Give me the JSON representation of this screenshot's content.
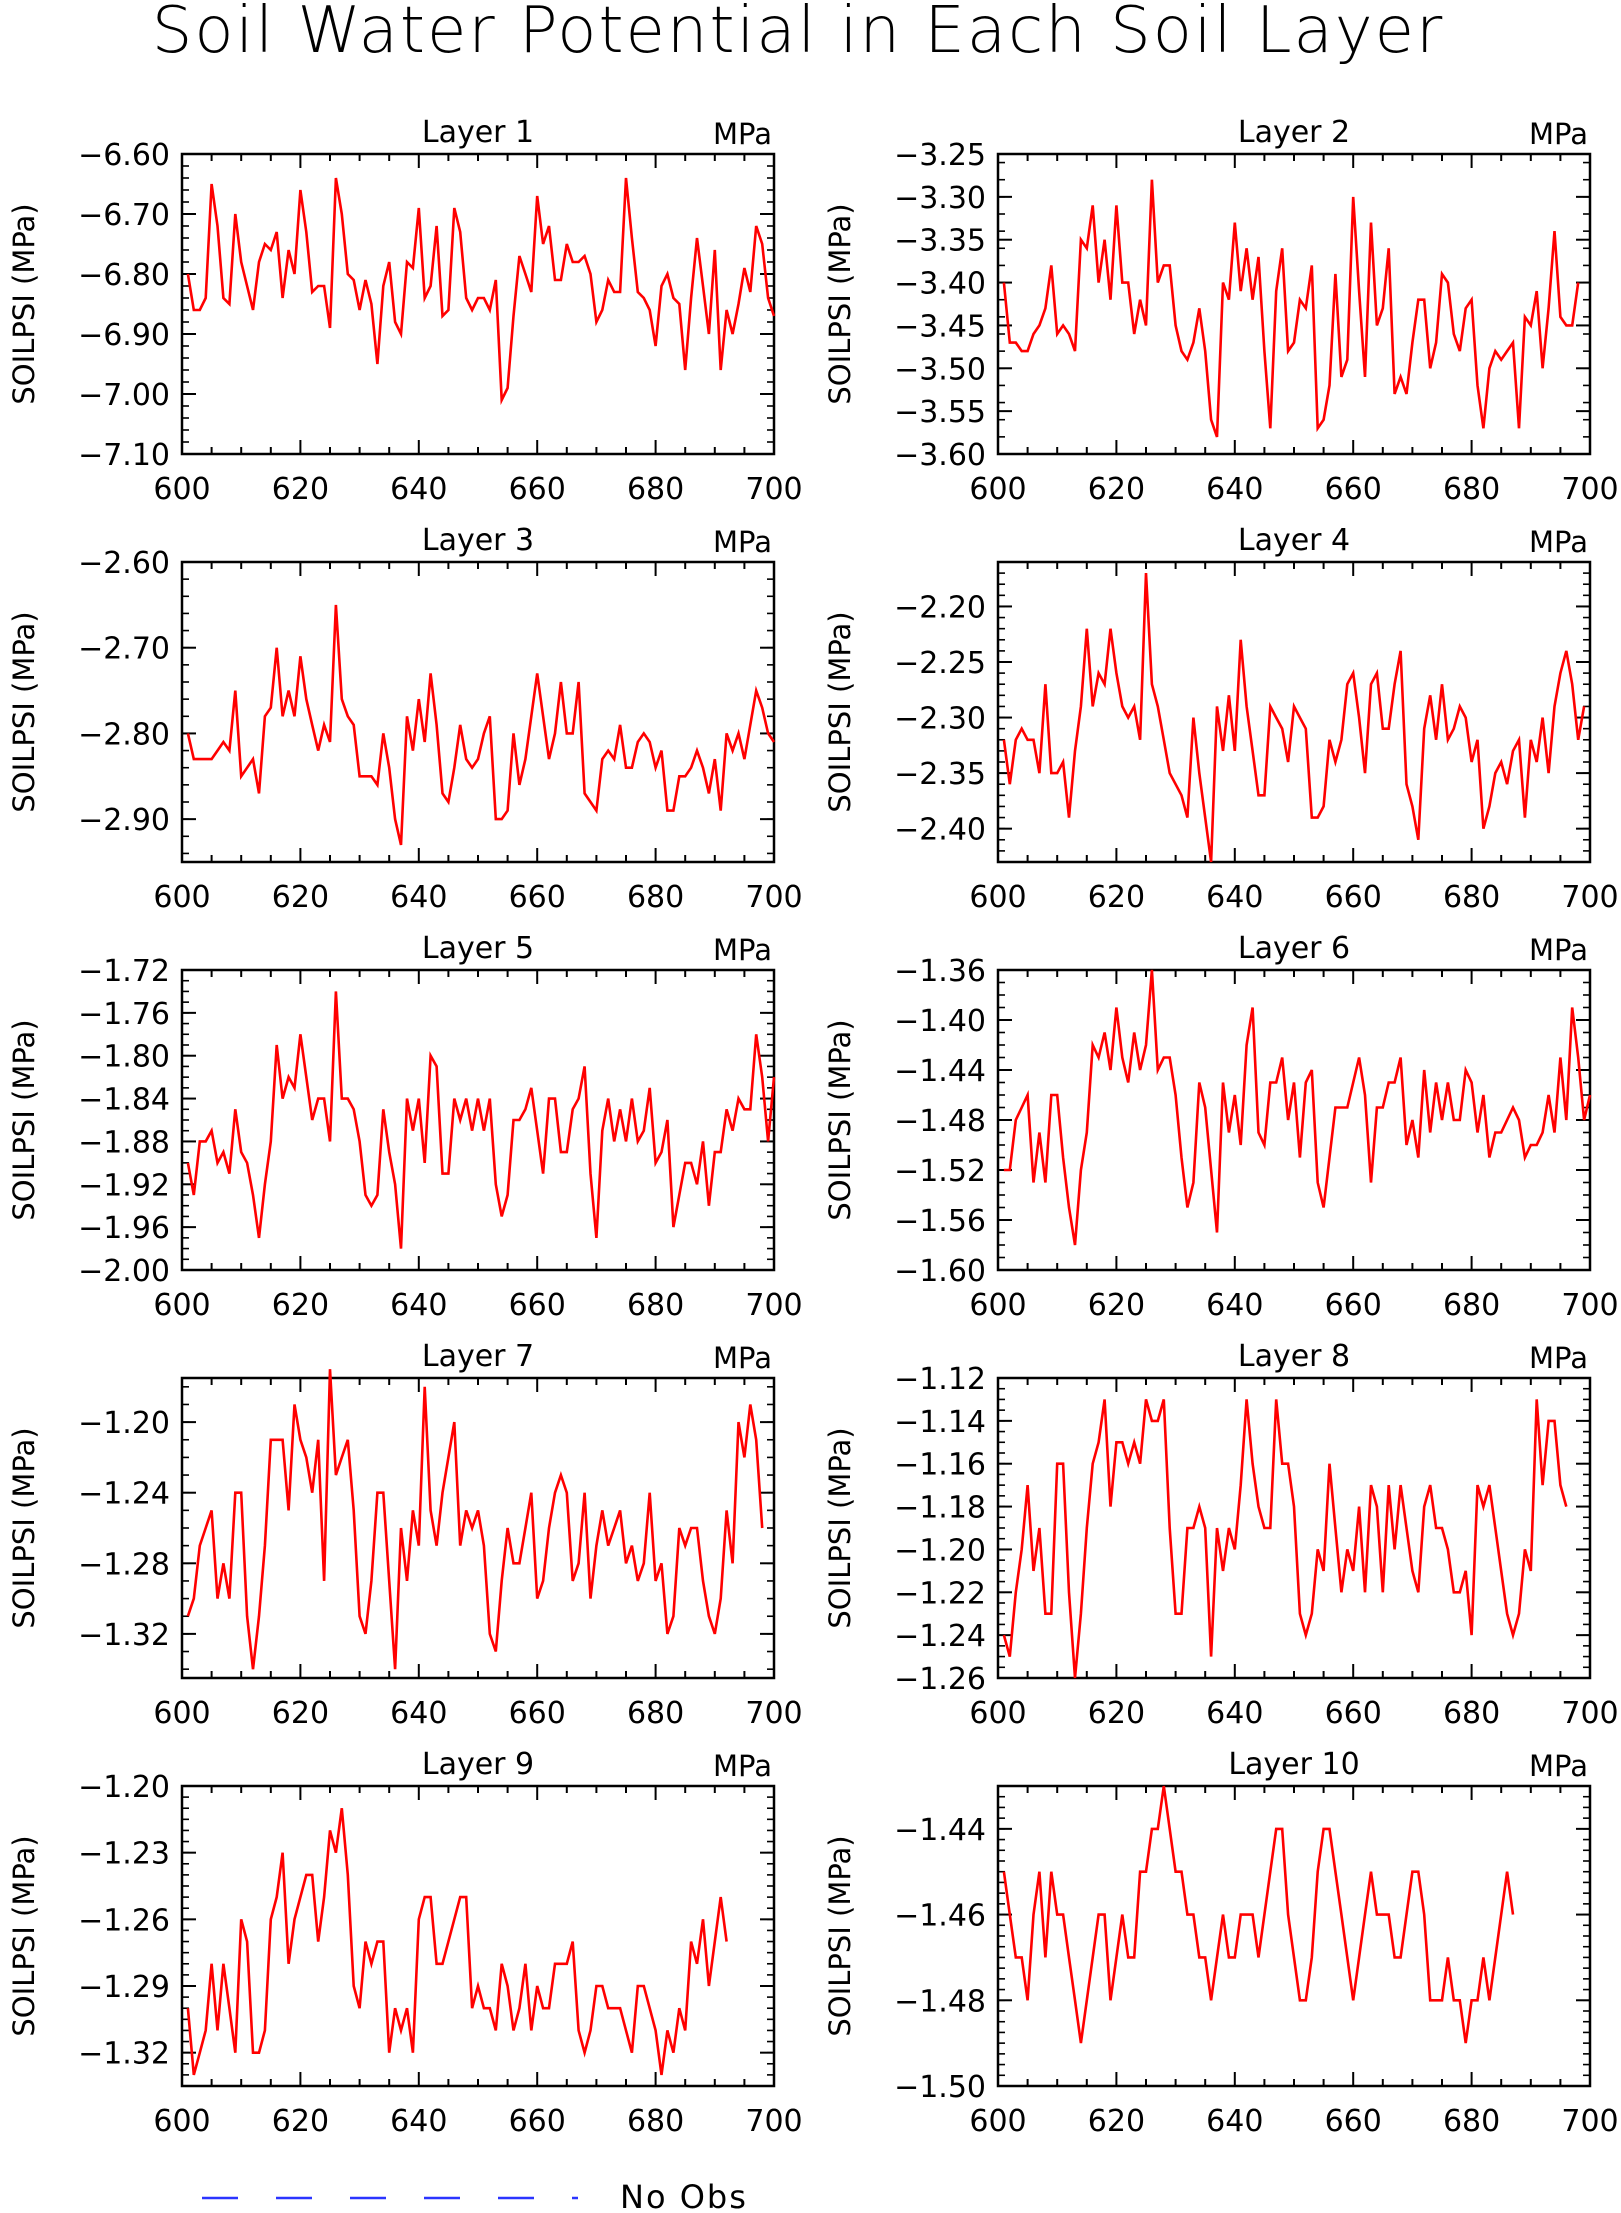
{
  "title": "Soil Water Potential in Each Soil Layer",
  "legend": {
    "label": "No Obs",
    "color": "#2b35ff"
  },
  "line_color": "#ff0000",
  "chart_data": [
    {
      "type": "line",
      "title": "Layer 1",
      "unit": "MPa",
      "ylabel": "SOILPSI (MPa)",
      "xlim": [
        600,
        700
      ],
      "ylim": [
        -7.1,
        -6.6
      ],
      "xticks": [
        "600",
        "620",
        "640",
        "660",
        "680",
        "700"
      ],
      "yticks": [
        "-6.60",
        "-6.70",
        "-6.80",
        "-6.90",
        "-7.00",
        "-7.10"
      ],
      "x_start": 601,
      "values": [
        -6.8,
        -6.86,
        -6.86,
        -6.84,
        -6.65,
        -6.72,
        -6.84,
        -6.85,
        -6.7,
        -6.78,
        -6.82,
        -6.86,
        -6.78,
        -6.75,
        -6.76,
        -6.73,
        -6.84,
        -6.76,
        -6.8,
        -6.66,
        -6.73,
        -6.83,
        -6.82,
        -6.82,
        -6.89,
        -6.64,
        -6.7,
        -6.8,
        -6.81,
        -6.86,
        -6.81,
        -6.85,
        -6.95,
        -6.82,
        -6.78,
        -6.88,
        -6.9,
        -6.78,
        -6.79,
        -6.69,
        -6.84,
        -6.82,
        -6.72,
        -6.87,
        -6.86,
        -6.69,
        -6.73,
        -6.84,
        -6.86,
        -6.84,
        -6.84,
        -6.86,
        -6.81,
        -7.01,
        -6.99,
        -6.87,
        -6.77,
        -6.8,
        -6.83,
        -6.67,
        -6.75,
        -6.72,
        -6.81,
        -6.81,
        -6.75,
        -6.78,
        -6.78,
        -6.77,
        -6.8,
        -6.88,
        -6.86,
        -6.81,
        -6.83,
        -6.83,
        -6.64,
        -6.74,
        -6.83,
        -6.84,
        -6.86,
        -6.92,
        -6.82,
        -6.8,
        -6.84,
        -6.85,
        -6.96,
        -6.84,
        -6.74,
        -6.82,
        -6.9,
        -6.76,
        -6.96,
        -6.86,
        -6.9,
        -6.85,
        -6.79,
        -6.83,
        -6.72,
        -6.75,
        -6.84,
        -6.87
      ]
    },
    {
      "type": "line",
      "title": "Layer 2",
      "unit": "MPa",
      "ylabel": "SOILPSI (MPa)",
      "xlim": [
        600,
        700
      ],
      "ylim": [
        -3.6,
        -3.25
      ],
      "xticks": [
        "600",
        "620",
        "640",
        "660",
        "680",
        "700"
      ],
      "yticks": [
        "-3.25",
        "-3.30",
        "-3.35",
        "-3.40",
        "-3.45",
        "-3.50",
        "-3.55",
        "-3.60"
      ],
      "x_start": 601,
      "values": [
        -3.4,
        -3.47,
        -3.47,
        -3.48,
        -3.48,
        -3.46,
        -3.45,
        -3.43,
        -3.38,
        -3.46,
        -3.45,
        -3.46,
        -3.48,
        -3.35,
        -3.36,
        -3.31,
        -3.4,
        -3.35,
        -3.42,
        -3.31,
        -3.4,
        -3.4,
        -3.46,
        -3.42,
        -3.45,
        -3.28,
        -3.4,
        -3.38,
        -3.38,
        -3.45,
        -3.48,
        -3.49,
        -3.47,
        -3.43,
        -3.48,
        -3.56,
        -3.58,
        -3.4,
        -3.42,
        -3.33,
        -3.41,
        -3.36,
        -3.42,
        -3.37,
        -3.48,
        -3.57,
        -3.41,
        -3.36,
        -3.48,
        -3.47,
        -3.42,
        -3.43,
        -3.38,
        -3.57,
        -3.56,
        -3.52,
        -3.39,
        -3.51,
        -3.49,
        -3.3,
        -3.41,
        -3.51,
        -3.33,
        -3.45,
        -3.43,
        -3.36,
        -3.53,
        -3.51,
        -3.53,
        -3.47,
        -3.42,
        -3.42,
        -3.5,
        -3.47,
        -3.39,
        -3.4,
        -3.46,
        -3.48,
        -3.43,
        -3.42,
        -3.52,
        -3.57,
        -3.5,
        -3.48,
        -3.49,
        -3.48,
        -3.47,
        -3.57,
        -3.44,
        -3.45,
        -3.41,
        -3.5,
        -3.43,
        -3.34,
        -3.44,
        -3.45,
        -3.45,
        -3.4
      ]
    },
    {
      "type": "line",
      "title": "Layer 3",
      "unit": "MPa",
      "ylabel": "SOILPSI (MPa)",
      "xlim": [
        600,
        700
      ],
      "ylim": [
        -2.95,
        -2.6
      ],
      "xticks": [
        "600",
        "620",
        "640",
        "660",
        "680",
        "700"
      ],
      "yticks": [
        "-2.60",
        "-2.70",
        "-2.80",
        "-2.90"
      ],
      "x_start": 601,
      "values": [
        -2.8,
        -2.83,
        -2.83,
        -2.83,
        -2.83,
        -2.82,
        -2.81,
        -2.82,
        -2.75,
        -2.85,
        -2.84,
        -2.83,
        -2.87,
        -2.78,
        -2.77,
        -2.7,
        -2.78,
        -2.75,
        -2.78,
        -2.71,
        -2.76,
        -2.79,
        -2.82,
        -2.79,
        -2.81,
        -2.65,
        -2.76,
        -2.78,
        -2.79,
        -2.85,
        -2.85,
        -2.85,
        -2.86,
        -2.8,
        -2.84,
        -2.9,
        -2.93,
        -2.78,
        -2.82,
        -2.76,
        -2.81,
        -2.73,
        -2.79,
        -2.87,
        -2.88,
        -2.84,
        -2.79,
        -2.83,
        -2.84,
        -2.83,
        -2.8,
        -2.78,
        -2.9,
        -2.9,
        -2.89,
        -2.8,
        -2.86,
        -2.83,
        -2.78,
        -2.73,
        -2.78,
        -2.83,
        -2.8,
        -2.74,
        -2.8,
        -2.8,
        -2.74,
        -2.87,
        -2.88,
        -2.89,
        -2.83,
        -2.82,
        -2.83,
        -2.79,
        -2.84,
        -2.84,
        -2.81,
        -2.8,
        -2.81,
        -2.84,
        -2.82,
        -2.89,
        -2.89,
        -2.85,
        -2.85,
        -2.84,
        -2.82,
        -2.84,
        -2.87,
        -2.83,
        -2.89,
        -2.8,
        -2.82,
        -2.8,
        -2.83,
        -2.79,
        -2.75,
        -2.77,
        -2.8,
        -2.81
      ]
    },
    {
      "type": "line",
      "title": "Layer 4",
      "unit": "MPa",
      "ylabel": "SOILPSI (MPa)",
      "xlim": [
        600,
        700
      ],
      "ylim": [
        -2.43,
        -2.16
      ],
      "xticks": [
        "600",
        "620",
        "640",
        "660",
        "680",
        "700"
      ],
      "yticks": [
        "-2.20",
        "-2.25",
        "-2.30",
        "-2.35",
        "-2.40"
      ],
      "x_start": 601,
      "values": [
        -2.32,
        -2.36,
        -2.32,
        -2.31,
        -2.32,
        -2.32,
        -2.35,
        -2.27,
        -2.35,
        -2.35,
        -2.34,
        -2.39,
        -2.33,
        -2.29,
        -2.22,
        -2.29,
        -2.26,
        -2.27,
        -2.22,
        -2.26,
        -2.29,
        -2.3,
        -2.29,
        -2.32,
        -2.17,
        -2.27,
        -2.29,
        -2.32,
        -2.35,
        -2.36,
        -2.37,
        -2.39,
        -2.3,
        -2.35,
        -2.39,
        -2.43,
        -2.29,
        -2.33,
        -2.28,
        -2.33,
        -2.23,
        -2.29,
        -2.33,
        -2.37,
        -2.37,
        -2.29,
        -2.3,
        -2.31,
        -2.34,
        -2.29,
        -2.3,
        -2.31,
        -2.39,
        -2.39,
        -2.38,
        -2.32,
        -2.34,
        -2.32,
        -2.27,
        -2.26,
        -2.3,
        -2.35,
        -2.27,
        -2.26,
        -2.31,
        -2.31,
        -2.27,
        -2.24,
        -2.36,
        -2.38,
        -2.41,
        -2.31,
        -2.28,
        -2.32,
        -2.27,
        -2.32,
        -2.31,
        -2.29,
        -2.3,
        -2.34,
        -2.32,
        -2.4,
        -2.38,
        -2.35,
        -2.34,
        -2.36,
        -2.33,
        -2.32,
        -2.39,
        -2.32,
        -2.34,
        -2.3,
        -2.35,
        -2.29,
        -2.26,
        -2.24,
        -2.27,
        -2.32,
        -2.29
      ]
    },
    {
      "type": "line",
      "title": "Layer 5",
      "unit": "MPa",
      "ylabel": "SOILPSI (MPa)",
      "xlim": [
        600,
        700
      ],
      "ylim": [
        -2.0,
        -1.72
      ],
      "xticks": [
        "600",
        "620",
        "640",
        "660",
        "680",
        "700"
      ],
      "yticks": [
        "-1.72",
        "-1.76",
        "-1.80",
        "-1.84",
        "-1.88",
        "-1.92",
        "-1.96",
        "-2.00"
      ],
      "x_start": 601,
      "values": [
        -1.9,
        -1.93,
        -1.88,
        -1.88,
        -1.87,
        -1.9,
        -1.89,
        -1.91,
        -1.85,
        -1.89,
        -1.9,
        -1.93,
        -1.97,
        -1.92,
        -1.88,
        -1.79,
        -1.84,
        -1.82,
        -1.83,
        -1.78,
        -1.82,
        -1.86,
        -1.84,
        -1.84,
        -1.88,
        -1.74,
        -1.84,
        -1.84,
        -1.85,
        -1.88,
        -1.93,
        -1.94,
        -1.93,
        -1.85,
        -1.89,
        -1.92,
        -1.98,
        -1.84,
        -1.87,
        -1.84,
        -1.9,
        -1.8,
        -1.81,
        -1.91,
        -1.91,
        -1.84,
        -1.86,
        -1.84,
        -1.87,
        -1.84,
        -1.87,
        -1.84,
        -1.92,
        -1.95,
        -1.93,
        -1.86,
        -1.86,
        -1.85,
        -1.83,
        -1.87,
        -1.91,
        -1.84,
        -1.84,
        -1.89,
        -1.89,
        -1.85,
        -1.84,
        -1.81,
        -1.91,
        -1.97,
        -1.87,
        -1.84,
        -1.88,
        -1.85,
        -1.88,
        -1.84,
        -1.88,
        -1.87,
        -1.83,
        -1.9,
        -1.89,
        -1.86,
        -1.96,
        -1.93,
        -1.9,
        -1.9,
        -1.92,
        -1.88,
        -1.94,
        -1.89,
        -1.89,
        -1.85,
        -1.87,
        -1.84,
        -1.85,
        -1.85,
        -1.78,
        -1.82,
        -1.88,
        -1.82
      ]
    },
    {
      "type": "line",
      "title": "Layer 6",
      "unit": "MPa",
      "ylabel": "SOILPSI (MPa)",
      "xlim": [
        600,
        700
      ],
      "ylim": [
        -1.6,
        -1.36
      ],
      "xticks": [
        "600",
        "620",
        "640",
        "660",
        "680",
        "700"
      ],
      "yticks": [
        "-1.36",
        "-1.40",
        "-1.44",
        "-1.48",
        "-1.52",
        "-1.56",
        "-1.60"
      ],
      "x_start": 601,
      "values": [
        -1.52,
        -1.52,
        -1.48,
        -1.47,
        -1.46,
        -1.53,
        -1.49,
        -1.53,
        -1.46,
        -1.46,
        -1.51,
        -1.55,
        -1.58,
        -1.52,
        -1.49,
        -1.42,
        -1.43,
        -1.41,
        -1.44,
        -1.39,
        -1.43,
        -1.45,
        -1.41,
        -1.44,
        -1.42,
        -1.36,
        -1.44,
        -1.43,
        -1.43,
        -1.46,
        -1.51,
        -1.55,
        -1.53,
        -1.45,
        -1.47,
        -1.52,
        -1.57,
        -1.45,
        -1.49,
        -1.46,
        -1.5,
        -1.42,
        -1.39,
        -1.49,
        -1.5,
        -1.45,
        -1.45,
        -1.43,
        -1.48,
        -1.45,
        -1.51,
        -1.45,
        -1.44,
        -1.53,
        -1.55,
        -1.51,
        -1.47,
        -1.47,
        -1.47,
        -1.45,
        -1.43,
        -1.46,
        -1.53,
        -1.47,
        -1.47,
        -1.45,
        -1.45,
        -1.43,
        -1.5,
        -1.48,
        -1.51,
        -1.44,
        -1.49,
        -1.45,
        -1.48,
        -1.45,
        -1.48,
        -1.48,
        -1.44,
        -1.45,
        -1.49,
        -1.46,
        -1.51,
        -1.49,
        -1.49,
        -1.48,
        -1.47,
        -1.48,
        -1.51,
        -1.5,
        -1.5,
        -1.49,
        -1.46,
        -1.49,
        -1.43,
        -1.48,
        -1.39,
        -1.43,
        -1.48,
        -1.46
      ]
    },
    {
      "type": "line",
      "title": "Layer 7",
      "unit": "MPa",
      "ylabel": "SOILPSI (MPa)",
      "xlim": [
        600,
        700
      ],
      "ylim": [
        -1.345,
        -1.175
      ],
      "xticks": [
        "600",
        "620",
        "640",
        "660",
        "680",
        "700"
      ],
      "yticks": [
        "-1.20",
        "-1.24",
        "-1.28",
        "-1.32"
      ],
      "x_start": 601,
      "values": [
        -1.31,
        -1.3,
        -1.27,
        -1.26,
        -1.25,
        -1.3,
        -1.28,
        -1.3,
        -1.24,
        -1.24,
        -1.31,
        -1.34,
        -1.31,
        -1.27,
        -1.21,
        -1.21,
        -1.21,
        -1.25,
        -1.19,
        -1.21,
        -1.22,
        -1.24,
        -1.21,
        -1.29,
        -1.17,
        -1.23,
        -1.22,
        -1.21,
        -1.25,
        -1.31,
        -1.32,
        -1.29,
        -1.24,
        -1.24,
        -1.29,
        -1.34,
        -1.26,
        -1.29,
        -1.25,
        -1.27,
        -1.18,
        -1.25,
        -1.27,
        -1.24,
        -1.22,
        -1.2,
        -1.27,
        -1.25,
        -1.26,
        -1.25,
        -1.27,
        -1.32,
        -1.33,
        -1.29,
        -1.26,
        -1.28,
        -1.28,
        -1.26,
        -1.24,
        -1.3,
        -1.29,
        -1.26,
        -1.24,
        -1.23,
        -1.24,
        -1.29,
        -1.28,
        -1.24,
        -1.3,
        -1.27,
        -1.25,
        -1.27,
        -1.26,
        -1.25,
        -1.28,
        -1.27,
        -1.29,
        -1.28,
        -1.24,
        -1.29,
        -1.28,
        -1.32,
        -1.31,
        -1.26,
        -1.27,
        -1.26,
        -1.26,
        -1.29,
        -1.31,
        -1.32,
        -1.3,
        -1.25,
        -1.28,
        -1.2,
        -1.22,
        -1.19,
        -1.21,
        -1.26
      ]
    },
    {
      "type": "line",
      "title": "Layer 8",
      "unit": "MPa",
      "ylabel": "SOILPSI (MPa)",
      "xlim": [
        600,
        700
      ],
      "ylim": [
        -1.26,
        -1.12
      ],
      "xticks": [
        "600",
        "620",
        "640",
        "660",
        "680",
        "700"
      ],
      "yticks": [
        "-1.12",
        "-1.14",
        "-1.16",
        "-1.18",
        "-1.20",
        "-1.22",
        "-1.24",
        "-1.26"
      ],
      "x_start": 601,
      "values": [
        -1.24,
        -1.25,
        -1.22,
        -1.2,
        -1.17,
        -1.21,
        -1.19,
        -1.23,
        -1.23,
        -1.16,
        -1.16,
        -1.22,
        -1.26,
        -1.23,
        -1.19,
        -1.16,
        -1.15,
        -1.13,
        -1.18,
        -1.15,
        -1.15,
        -1.16,
        -1.15,
        -1.16,
        -1.13,
        -1.14,
        -1.14,
        -1.13,
        -1.19,
        -1.23,
        -1.23,
        -1.19,
        -1.19,
        -1.18,
        -1.19,
        -1.25,
        -1.19,
        -1.21,
        -1.19,
        -1.2,
        -1.17,
        -1.13,
        -1.16,
        -1.18,
        -1.19,
        -1.19,
        -1.13,
        -1.16,
        -1.16,
        -1.18,
        -1.23,
        -1.24,
        -1.23,
        -1.2,
        -1.21,
        -1.16,
        -1.19,
        -1.22,
        -1.2,
        -1.21,
        -1.18,
        -1.22,
        -1.17,
        -1.18,
        -1.22,
        -1.17,
        -1.2,
        -1.17,
        -1.19,
        -1.21,
        -1.22,
        -1.18,
        -1.17,
        -1.19,
        -1.19,
        -1.2,
        -1.22,
        -1.22,
        -1.21,
        -1.24,
        -1.17,
        -1.18,
        -1.17,
        -1.19,
        -1.21,
        -1.23,
        -1.24,
        -1.23,
        -1.2,
        -1.21,
        -1.13,
        -1.17,
        -1.14,
        -1.14,
        -1.17,
        -1.18
      ]
    },
    {
      "type": "line",
      "title": "Layer 9",
      "unit": "MPa",
      "ylabel": "SOILPSI (MPa)",
      "xlim": [
        600,
        700
      ],
      "ylim": [
        -1.335,
        -1.2
      ],
      "xticks": [
        "600",
        "620",
        "640",
        "660",
        "680",
        "700"
      ],
      "yticks": [
        "-1.20",
        "-1.23",
        "-1.26",
        "-1.29",
        "-1.32"
      ],
      "x_start": 601,
      "values": [
        -1.3,
        -1.33,
        -1.32,
        -1.31,
        -1.28,
        -1.31,
        -1.28,
        -1.3,
        -1.32,
        -1.26,
        -1.27,
        -1.32,
        -1.32,
        -1.31,
        -1.26,
        -1.25,
        -1.23,
        -1.28,
        -1.26,
        -1.25,
        -1.24,
        -1.24,
        -1.27,
        -1.25,
        -1.22,
        -1.23,
        -1.21,
        -1.24,
        -1.29,
        -1.3,
        -1.27,
        -1.28,
        -1.27,
        -1.27,
        -1.32,
        -1.3,
        -1.31,
        -1.3,
        -1.32,
        -1.26,
        -1.25,
        -1.25,
        -1.28,
        -1.28,
        -1.27,
        -1.26,
        -1.25,
        -1.25,
        -1.3,
        -1.29,
        -1.3,
        -1.3,
        -1.31,
        -1.28,
        -1.29,
        -1.31,
        -1.3,
        -1.28,
        -1.31,
        -1.29,
        -1.3,
        -1.3,
        -1.28,
        -1.28,
        -1.28,
        -1.27,
        -1.31,
        -1.32,
        -1.31,
        -1.29,
        -1.29,
        -1.3,
        -1.3,
        -1.3,
        -1.31,
        -1.32,
        -1.29,
        -1.29,
        -1.3,
        -1.31,
        -1.33,
        -1.31,
        -1.32,
        -1.3,
        -1.31,
        -1.27,
        -1.28,
        -1.26,
        -1.29,
        -1.27,
        -1.25,
        -1.27
      ]
    },
    {
      "type": "line",
      "title": "Layer 10",
      "unit": "MPa",
      "ylabel": "SOILPSI (MPa)",
      "xlim": [
        600,
        700
      ],
      "ylim": [
        -1.5,
        -1.43
      ],
      "xticks": [
        "600",
        "620",
        "640",
        "660",
        "680",
        "700"
      ],
      "yticks": [
        "-1.44",
        "-1.46",
        "-1.48",
        "-1.50"
      ],
      "x_start": 601,
      "values": [
        -1.45,
        -1.46,
        -1.47,
        -1.47,
        -1.48,
        -1.46,
        -1.45,
        -1.47,
        -1.45,
        -1.46,
        -1.46,
        -1.47,
        -1.48,
        -1.49,
        -1.48,
        -1.47,
        -1.46,
        -1.46,
        -1.48,
        -1.47,
        -1.46,
        -1.47,
        -1.47,
        -1.45,
        -1.45,
        -1.44,
        -1.44,
        -1.43,
        -1.44,
        -1.45,
        -1.45,
        -1.46,
        -1.46,
        -1.47,
        -1.47,
        -1.48,
        -1.47,
        -1.46,
        -1.47,
        -1.47,
        -1.46,
        -1.46,
        -1.46,
        -1.47,
        -1.46,
        -1.45,
        -1.44,
        -1.44,
        -1.46,
        -1.47,
        -1.48,
        -1.48,
        -1.47,
        -1.45,
        -1.44,
        -1.44,
        -1.45,
        -1.46,
        -1.47,
        -1.48,
        -1.47,
        -1.46,
        -1.45,
        -1.46,
        -1.46,
        -1.46,
        -1.47,
        -1.47,
        -1.46,
        -1.45,
        -1.45,
        -1.46,
        -1.48,
        -1.48,
        -1.48,
        -1.47,
        -1.48,
        -1.48,
        -1.49,
        -1.48,
        -1.48,
        -1.47,
        -1.48,
        -1.47,
        -1.46,
        -1.45,
        -1.46
      ]
    }
  ]
}
